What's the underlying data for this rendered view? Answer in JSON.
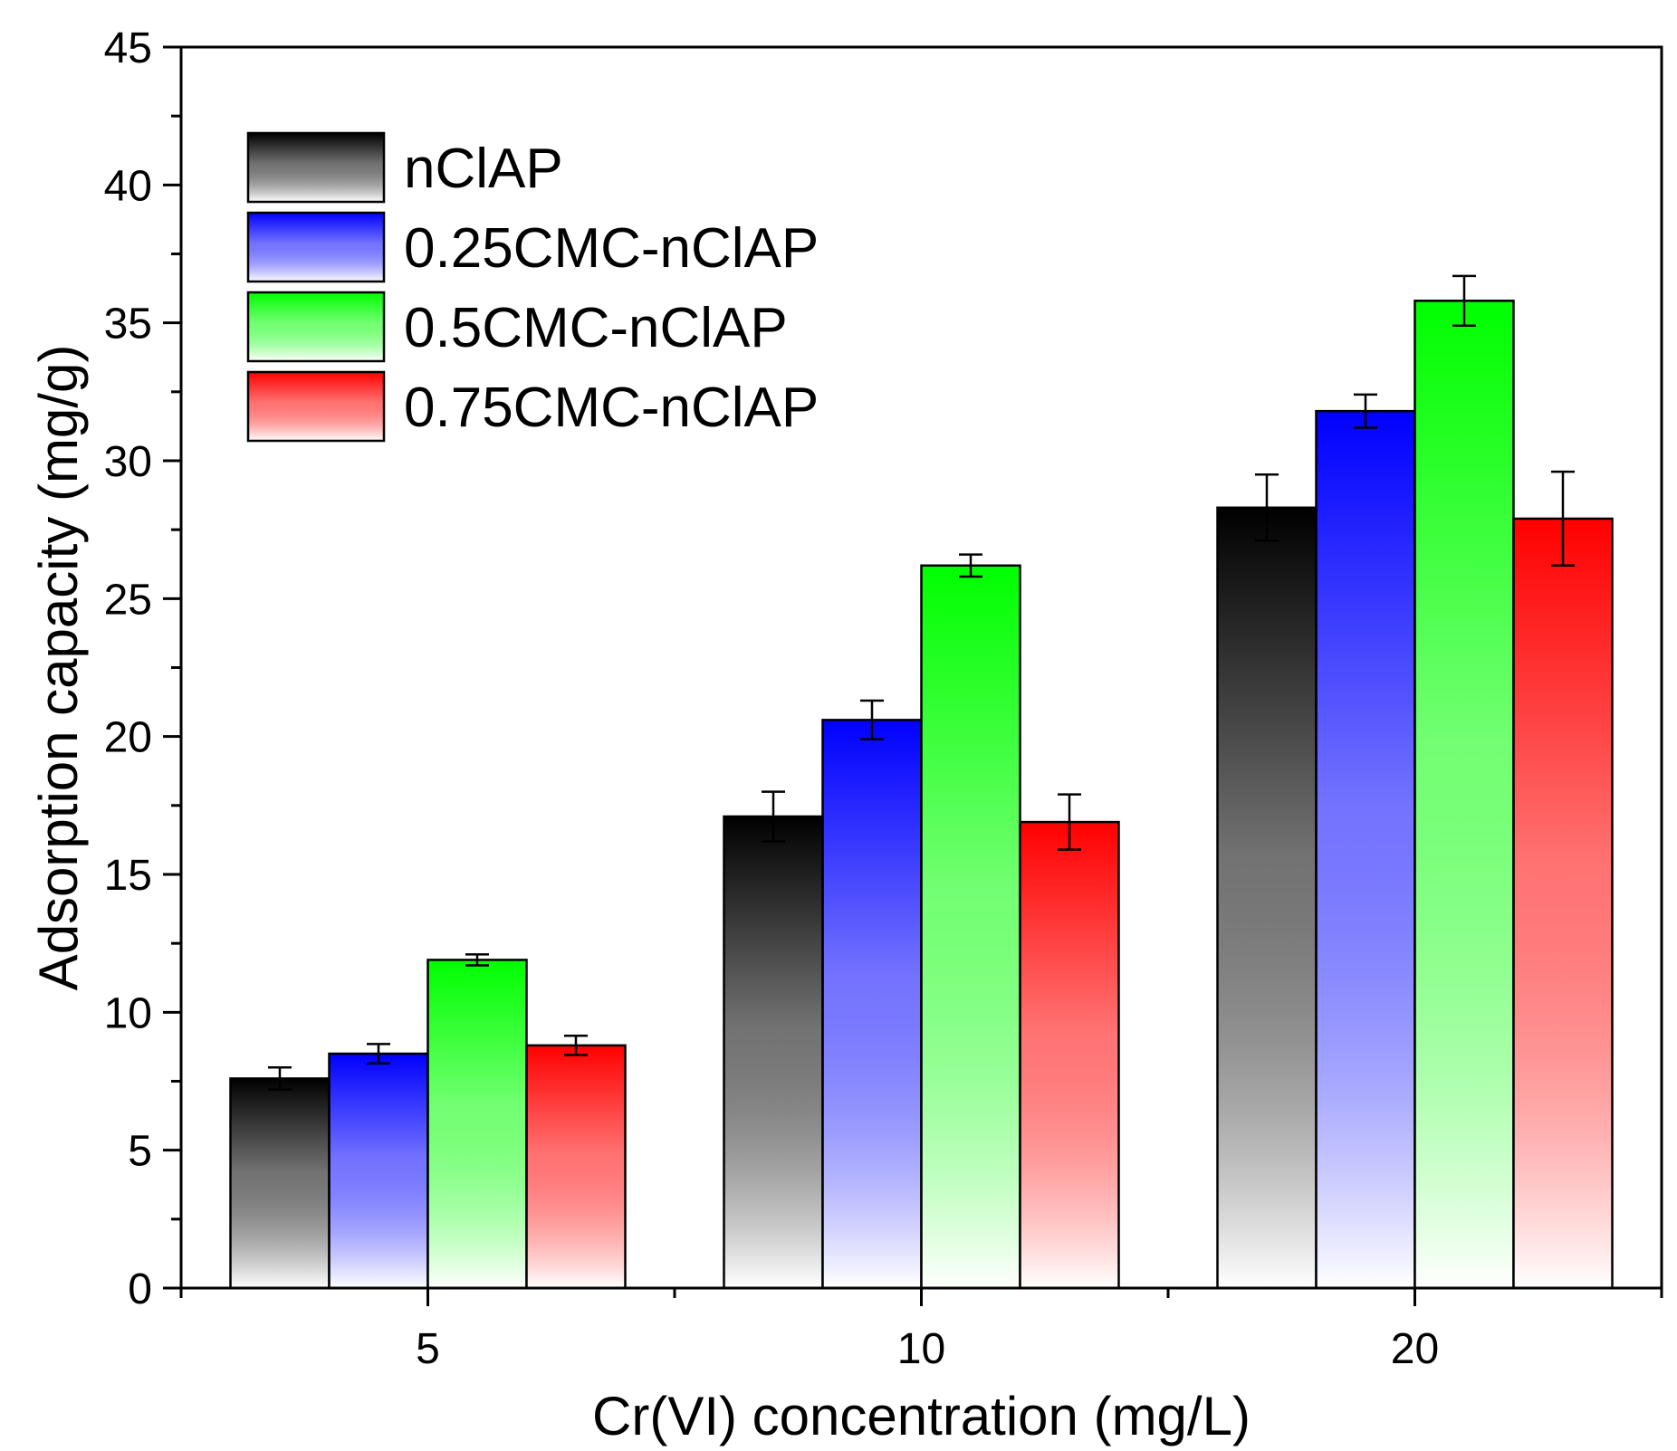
{
  "chart_data": {
    "type": "bar",
    "title": "",
    "xlabel": "Cr(VI) concentration (mg/L)",
    "ylabel": "Adsorption capacity (mg/g)",
    "ylim": [
      0,
      45
    ],
    "yticks": [
      "0",
      "5",
      "10",
      "15",
      "20",
      "25",
      "30",
      "35",
      "40",
      "45"
    ],
    "categories": [
      "5",
      "10",
      "20"
    ],
    "legend_position": "top-left",
    "grid": false,
    "series": [
      {
        "name": "nClAP",
        "color": "#000000",
        "values": [
          7.6,
          17.1,
          28.3
        ],
        "errors": [
          0.4,
          0.9,
          1.2
        ]
      },
      {
        "name": "0.25CMC-nClAP",
        "color": "#0000ff",
        "values": [
          8.5,
          20.6,
          31.8
        ],
        "errors": [
          0.35,
          0.7,
          0.6
        ]
      },
      {
        "name": "0.5CMC-nClAP",
        "color": "#00ff00",
        "values": [
          11.9,
          26.2,
          35.8
        ],
        "errors": [
          0.2,
          0.4,
          0.9
        ]
      },
      {
        "name": "0.75CMC-nClAP",
        "color": "#ff0000",
        "values": [
          8.8,
          16.9,
          27.9
        ],
        "errors": [
          0.35,
          1.0,
          1.7
        ]
      }
    ]
  }
}
